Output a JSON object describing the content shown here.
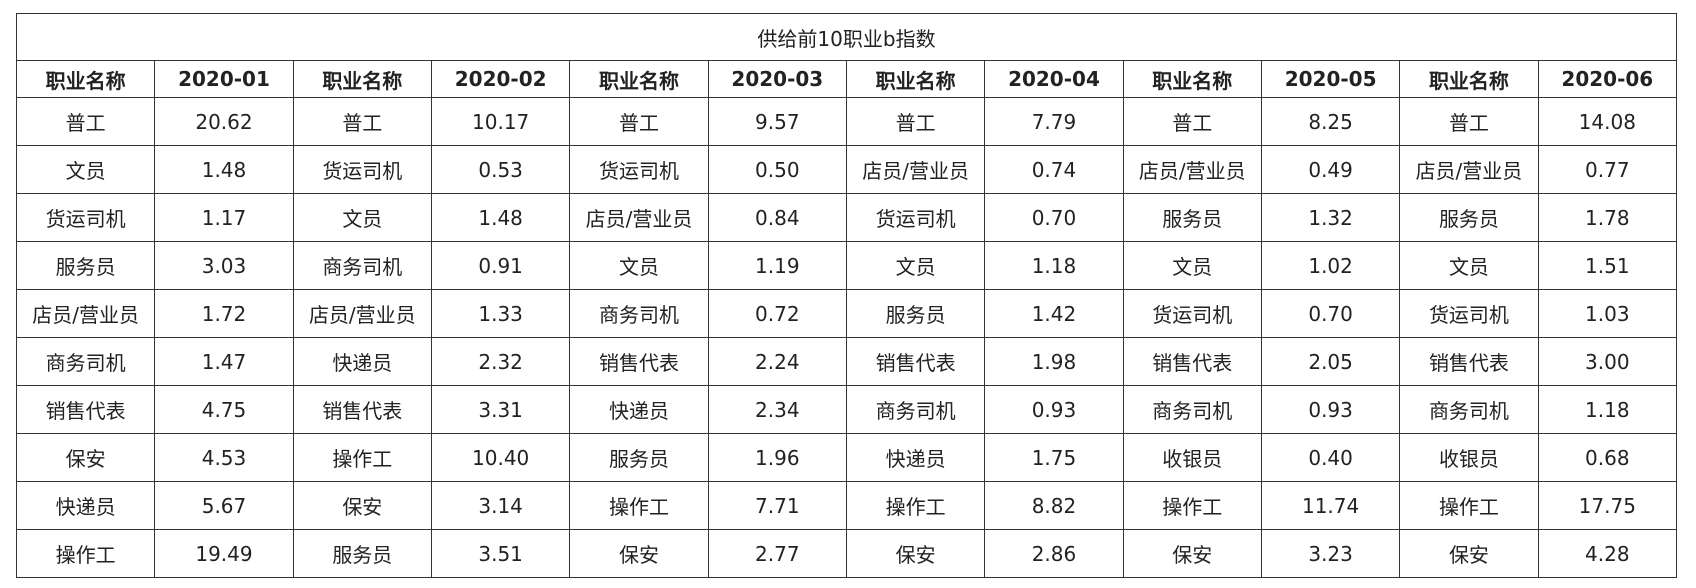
{
  "title": "供给前10职业b指数",
  "table": {
    "header": [
      "职业名称",
      "2020-01",
      "职业名称",
      "2020-02",
      "职业名称",
      "2020-03",
      "职业名称",
      "2020-04",
      "职业名称",
      "2020-05",
      "职业名称",
      "2020-06"
    ],
    "rows": [
      [
        "普工",
        "20.62",
        "普工",
        "10.17",
        "普工",
        "9.57",
        "普工",
        "7.79",
        "普工",
        "8.25",
        "普工",
        "14.08"
      ],
      [
        "文员",
        "1.48",
        "货运司机",
        "0.53",
        "货运司机",
        "0.50",
        "店员/营业员",
        "0.74",
        "店员/营业员",
        "0.49",
        "店员/营业员",
        "0.77"
      ],
      [
        "货运司机",
        "1.17",
        "文员",
        "1.48",
        "店员/营业员",
        "0.84",
        "货运司机",
        "0.70",
        "服务员",
        "1.32",
        "服务员",
        "1.78"
      ],
      [
        "服务员",
        "3.03",
        "商务司机",
        "0.91",
        "文员",
        "1.19",
        "文员",
        "1.18",
        "文员",
        "1.02",
        "文员",
        "1.51"
      ],
      [
        "店员/营业员",
        "1.72",
        "店员/营业员",
        "1.33",
        "商务司机",
        "0.72",
        "服务员",
        "1.42",
        "货运司机",
        "0.70",
        "货运司机",
        "1.03"
      ],
      [
        "商务司机",
        "1.47",
        "快递员",
        "2.32",
        "销售代表",
        "2.24",
        "销售代表",
        "1.98",
        "销售代表",
        "2.05",
        "销售代表",
        "3.00"
      ],
      [
        "销售代表",
        "4.75",
        "销售代表",
        "3.31",
        "快递员",
        "2.34",
        "商务司机",
        "0.93",
        "商务司机",
        "0.93",
        "商务司机",
        "1.18"
      ],
      [
        "保安",
        "4.53",
        "操作工",
        "10.40",
        "服务员",
        "1.96",
        "快递员",
        "1.75",
        "收银员",
        "0.40",
        "收银员",
        "0.68"
      ],
      [
        "快递员",
        "5.67",
        "保安",
        "3.14",
        "操作工",
        "7.71",
        "操作工",
        "8.82",
        "操作工",
        "11.74",
        "操作工",
        "17.75"
      ],
      [
        "操作工",
        "19.49",
        "服务员",
        "3.51",
        "保安",
        "2.77",
        "保安",
        "2.86",
        "保安",
        "3.23",
        "保安",
        "4.28"
      ]
    ]
  }
}
